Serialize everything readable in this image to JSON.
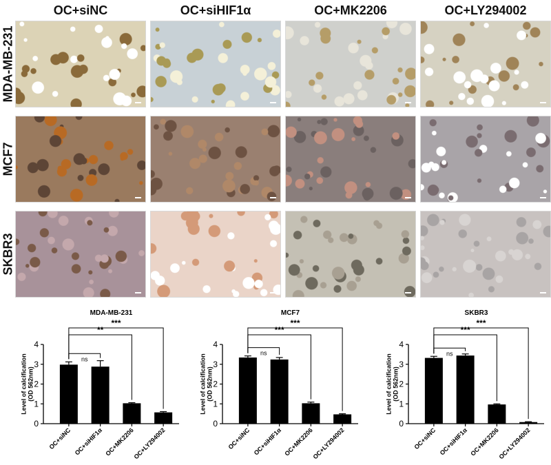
{
  "columns": [
    "OC+siNC",
    "OC+siHIF1α",
    "OC+MK2206",
    "OC+LY294002"
  ],
  "rows": [
    "MDA-MB-231",
    "MCF7",
    "SKBR3"
  ],
  "image_palettes": [
    [
      [
        "#dcd3b6",
        "#8a6a3a",
        "#ffffff"
      ],
      [
        "#c8d1d6",
        "#a99a55",
        "#f4f0d8"
      ],
      [
        "#cfd0cc",
        "#b59d68",
        "#e8e5da"
      ],
      [
        "#d6d2c2",
        "#a08458",
        "#ffffff"
      ]
    ],
    [
      [
        "#9a7a5e",
        "#b86a24",
        "#5d4536"
      ],
      [
        "#9a8070",
        "#6d5242",
        "#b08868"
      ],
      [
        "#8a7e7c",
        "#c29080",
        "#6b6160"
      ],
      [
        "#a9a4a8",
        "#ffffff",
        "#7a6c70"
      ]
    ],
    [
      [
        "#a8929a",
        "#7a5a48",
        "#c4a8ac"
      ],
      [
        "#ead4c8",
        "#d49a78",
        "#ffffff"
      ],
      [
        "#c4c0b4",
        "#6e6a5e",
        "#a8a092"
      ],
      [
        "#c8c2c0",
        "#a8a4a4",
        "#d8d4d2"
      ]
    ]
  ],
  "chart_data": [
    {
      "type": "bar",
      "title": "MDA-MB-231",
      "categories": [
        "OC+siNC",
        "OC+siHIF1α",
        "OC+MK2206",
        "OC+LY294002"
      ],
      "values": [
        2.98,
        2.88,
        1.03,
        0.57
      ],
      "errors": [
        0.14,
        0.3,
        0.03,
        0.04
      ],
      "ylabel": "Level of calcification (OD 562nm)",
      "ylim": [
        0,
        4
      ],
      "yticks": [
        0,
        1,
        2,
        3,
        4
      ],
      "significance": [
        {
          "from": 0,
          "to": 1,
          "label": "ns"
        },
        {
          "from": 0,
          "to": 2,
          "label": "**"
        },
        {
          "from": 0,
          "to": 3,
          "label": "***"
        }
      ],
      "bar_color": "#000000"
    },
    {
      "type": "bar",
      "title": "MCF7",
      "categories": [
        "OC+siNC",
        "OC+siHIF1α",
        "OC+MK2206",
        "OC+LY294002"
      ],
      "values": [
        3.34,
        3.24,
        1.03,
        0.47
      ],
      "errors": [
        0.08,
        0.1,
        0.06,
        0.03
      ],
      "ylabel": "Level of calcification (OD 562nm)",
      "ylim": [
        0,
        4
      ],
      "yticks": [
        0,
        1,
        2,
        3,
        4
      ],
      "significance": [
        {
          "from": 0,
          "to": 1,
          "label": "ns"
        },
        {
          "from": 0,
          "to": 2,
          "label": "***"
        },
        {
          "from": 0,
          "to": 3,
          "label": "***"
        }
      ],
      "bar_color": "#000000"
    },
    {
      "type": "bar",
      "title": "SKBR3",
      "categories": [
        "OC+siNC",
        "OC+siHIF1α",
        "OC+MK2206",
        "OC+LY294002"
      ],
      "values": [
        3.32,
        3.44,
        0.97,
        0.08
      ],
      "errors": [
        0.08,
        0.08,
        0.03,
        0.02
      ],
      "ylabel": "Level of calcification (OD 562nm)",
      "ylim": [
        0,
        4
      ],
      "yticks": [
        0,
        1,
        2,
        3,
        4
      ],
      "significance": [
        {
          "from": 0,
          "to": 1,
          "label": "ns"
        },
        {
          "from": 0,
          "to": 2,
          "label": "***"
        },
        {
          "from": 0,
          "to": 3,
          "label": "***"
        }
      ],
      "bar_color": "#000000"
    }
  ]
}
